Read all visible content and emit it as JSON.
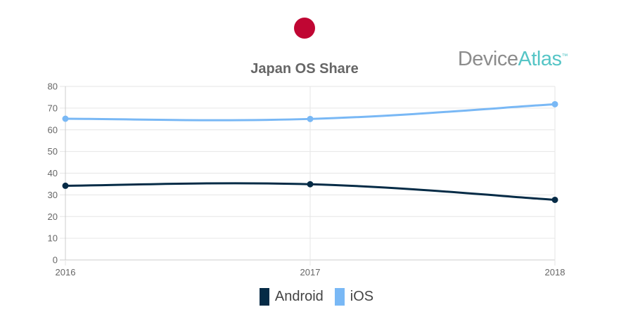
{
  "header": {
    "logo_device": "Device",
    "logo_atlas": "Atlas",
    "logo_tm": "™",
    "flag_color": "#c00633"
  },
  "colors": {
    "android": "#052b46",
    "ios": "#79b8f5",
    "grid": "#e6e6e6",
    "axis": "#999999",
    "tick_text": "#666666",
    "title_text": "#666666"
  },
  "chart_data": {
    "type": "line",
    "title": "Japan OS Share",
    "x": [
      "2016",
      "2017",
      "2018"
    ],
    "ylim": [
      0,
      80
    ],
    "yticks": [
      0,
      10,
      20,
      30,
      40,
      50,
      60,
      70,
      80
    ],
    "grid": true,
    "legend_position": "bottom",
    "series": [
      {
        "name": "Android",
        "values": [
          34.2,
          34.9,
          27.7
        ],
        "color": "#052b46"
      },
      {
        "name": "iOS",
        "values": [
          65.1,
          65.0,
          71.8
        ],
        "color": "#79b8f5"
      }
    ]
  }
}
